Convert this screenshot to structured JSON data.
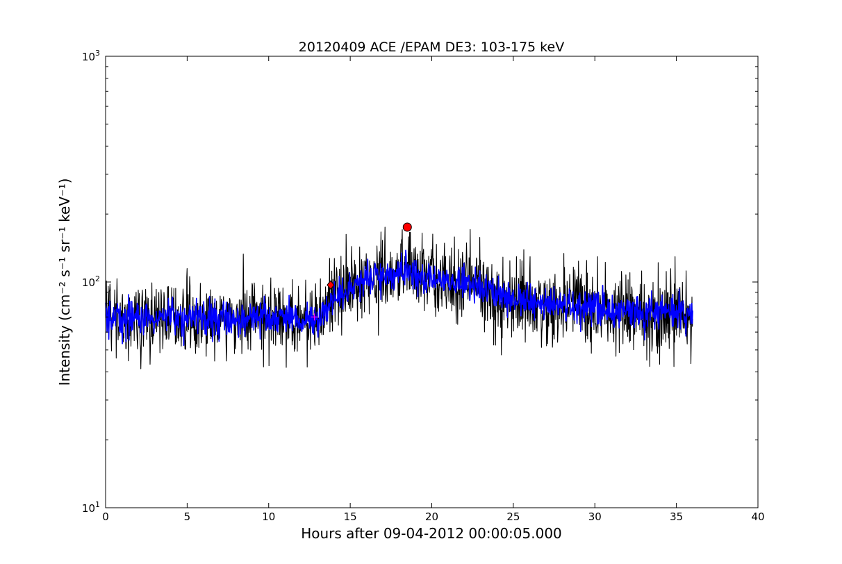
{
  "chart_data": {
    "type": "line",
    "title": "20120409 ACE /EPAM DE3: 103-175 keV",
    "xlabel": "Hours after 09-04-2012 00:00:05.000",
    "ylabel": "Intensity (cm⁻² s⁻¹ sr⁻¹ keV⁻¹)",
    "xlim": [
      0,
      40
    ],
    "ylim": [
      10,
      1000
    ],
    "yscale": "log",
    "grid": false,
    "x_ticks": [
      "0",
      "5",
      "10",
      "15",
      "20",
      "25",
      "30",
      "35",
      "40"
    ],
    "y_ticks": [
      {
        "base": "10",
        "exp": "1"
      },
      {
        "base": "10",
        "exp": "2"
      },
      {
        "base": "10",
        "exp": "3"
      }
    ],
    "series": [
      {
        "style": "raw",
        "color": "#000000",
        "x_range": [
          0,
          36
        ],
        "baseline": [
          [
            0,
            68
          ],
          [
            13,
            68
          ],
          [
            14,
            82
          ],
          [
            15.5,
            100
          ],
          [
            17,
            108
          ],
          [
            18.5,
            112
          ],
          [
            20,
            103
          ],
          [
            22,
            98
          ],
          [
            24,
            88
          ],
          [
            27,
            80
          ],
          [
            32,
            74
          ],
          [
            36,
            72
          ]
        ],
        "approx_spread": [
          40,
          175
        ]
      },
      {
        "style": "smoothed",
        "color": "#0000ff",
        "x_range": [
          0,
          36
        ],
        "baseline": [
          [
            0,
            70
          ],
          [
            13,
            68
          ],
          [
            14,
            82
          ],
          [
            15.5,
            100
          ],
          [
            17,
            108
          ],
          [
            18.5,
            112
          ],
          [
            20,
            103
          ],
          [
            22,
            98
          ],
          [
            24,
            88
          ],
          [
            27,
            80
          ],
          [
            32,
            74
          ],
          [
            36,
            72
          ]
        ]
      }
    ],
    "markers": [
      {
        "shape": "circle",
        "color": "#ff0000",
        "x": 18.5,
        "y": 175
      },
      {
        "shape": "diamond",
        "color": "#ff0000",
        "x": 13.8,
        "y": 97
      },
      {
        "shape": "plus",
        "color": "#ff00ff",
        "x": 12.8,
        "y": 70
      }
    ]
  }
}
